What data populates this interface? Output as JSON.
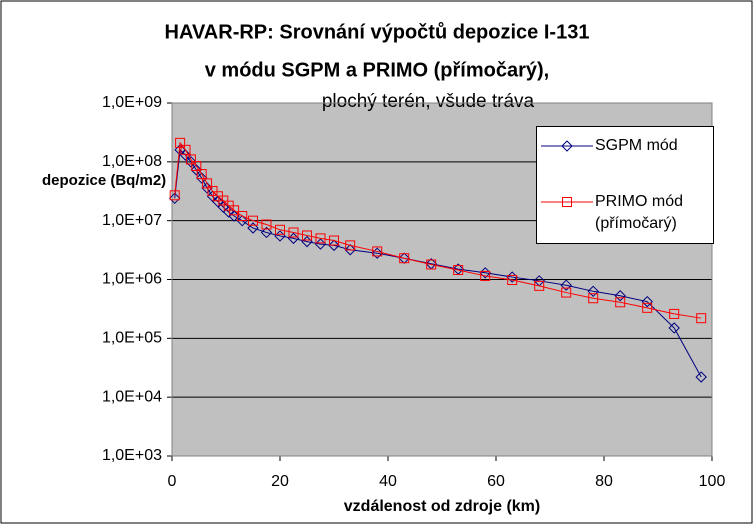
{
  "chart_data": {
    "type": "line",
    "title": [
      "HAVAR-RP: Srovnání výpočtů depozice I-131",
      "v módu SGPM a PRIMO (přímočarý),"
    ],
    "subtitle": "plochý terén, všude tráva",
    "y_label": "depozice (Bq/m2)",
    "x_label": "vzdálenost od zdroje (km)",
    "log_y": true,
    "grid": true,
    "legend": "top-right",
    "xlim": [
      0,
      100
    ],
    "xticks": [
      0,
      20,
      40,
      60,
      80,
      100
    ],
    "ylim": [
      1000,
      1000000000
    ],
    "yticks": [
      {
        "value": 1000,
        "label": "1,0E+03"
      },
      {
        "value": 10000,
        "label": "1,0E+04"
      },
      {
        "value": 100000,
        "label": "1,0E+05"
      },
      {
        "value": 1000000,
        "label": "1,0E+06"
      },
      {
        "value": 10000000,
        "label": "1,0E+07"
      },
      {
        "value": 100000000,
        "label": "1,0E+08"
      },
      {
        "value": 1000000000,
        "label": "1,0E+09"
      }
    ],
    "series": [
      {
        "name": "SGPM mód",
        "color": "#000080",
        "marker": "diamond",
        "x": [
          0.5,
          1.5,
          2.5,
          3.5,
          4.5,
          5.5,
          6.5,
          7.5,
          8.5,
          9.5,
          10.5,
          11.5,
          13,
          15,
          17.5,
          20,
          22.5,
          25,
          27.5,
          30,
          33,
          38,
          43,
          48,
          53,
          58,
          63,
          68,
          73,
          78,
          83,
          88,
          93,
          98
        ],
        "values": [
          24000000,
          160000000,
          130000000,
          100000000,
          73000000,
          53000000,
          36000000,
          26000000,
          21000000,
          17000000,
          14000000,
          12000000,
          10000000,
          7500000,
          6300000,
          5500000,
          5000000,
          4400000,
          4000000,
          3800000,
          3200000,
          2800000,
          2300000,
          1850000,
          1500000,
          1300000,
          1100000,
          950000,
          800000,
          630000,
          530000,
          420000,
          150000,
          22000
        ]
      },
      {
        "name": "PRIMO mód (přímočarý)",
        "color": "#ff0000",
        "marker": "square",
        "x": [
          0.5,
          1.5,
          2.5,
          3.5,
          4.5,
          5.5,
          6.5,
          7.5,
          8.5,
          9.5,
          10.5,
          11.5,
          13,
          15,
          17.5,
          20,
          22.5,
          25,
          27.5,
          30,
          33,
          38,
          43,
          48,
          53,
          58,
          63,
          68,
          73,
          78,
          83,
          88,
          93,
          98
        ],
        "values": [
          27000000,
          210000000,
          160000000,
          110000000,
          85000000,
          62000000,
          43000000,
          32000000,
          26000000,
          22000000,
          18000000,
          15000000,
          12000000,
          10000000,
          8600000,
          7000000,
          6300000,
          5600000,
          5000000,
          4600000,
          3800000,
          3000000,
          2300000,
          1800000,
          1450000,
          1150000,
          980000,
          780000,
          600000,
          480000,
          410000,
          330000,
          260000,
          220000
        ]
      }
    ]
  }
}
